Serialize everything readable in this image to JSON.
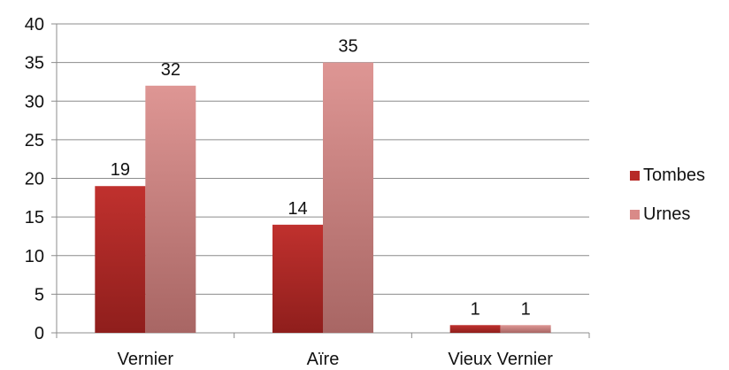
{
  "chart_data": {
    "type": "bar",
    "categories": [
      "Vernier",
      "Aïre",
      "Vieux Vernier"
    ],
    "series": [
      {
        "name": "Tombes",
        "values": [
          19,
          14,
          1
        ],
        "color": "#b72a27"
      },
      {
        "name": "Urnes",
        "values": [
          32,
          35,
          1
        ],
        "color": "#d98a88"
      }
    ],
    "ylim": [
      0,
      40
    ],
    "yticks": [
      0,
      5,
      10,
      15,
      20,
      25,
      30,
      35,
      40
    ],
    "grid": true,
    "legend_position": "right",
    "data_labels": true,
    "title": "",
    "xlabel": "",
    "ylabel": ""
  }
}
